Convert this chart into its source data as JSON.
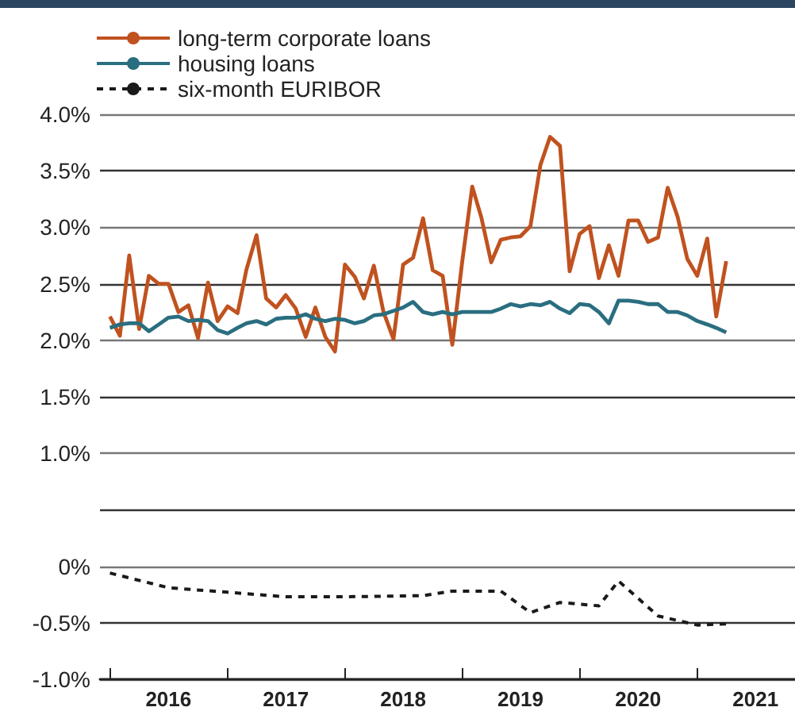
{
  "chart_data": {
    "type": "line",
    "x": [
      "2016-01",
      "2016-02",
      "2016-03",
      "2016-04",
      "2016-05",
      "2016-06",
      "2016-07",
      "2016-08",
      "2016-09",
      "2016-10",
      "2016-11",
      "2016-12",
      "2017-01",
      "2017-02",
      "2017-03",
      "2017-04",
      "2017-05",
      "2017-06",
      "2017-07",
      "2017-08",
      "2017-09",
      "2017-10",
      "2017-11",
      "2017-12",
      "2018-01",
      "2018-02",
      "2018-03",
      "2018-04",
      "2018-05",
      "2018-06",
      "2018-07",
      "2018-08",
      "2018-09",
      "2018-10",
      "2018-11",
      "2018-12",
      "2019-01",
      "2019-02",
      "2019-03",
      "2019-04",
      "2019-05",
      "2019-06",
      "2019-07",
      "2019-08",
      "2019-09",
      "2019-10",
      "2019-11",
      "2019-12",
      "2020-01",
      "2020-02",
      "2020-03",
      "2020-04",
      "2020-05",
      "2020-06",
      "2020-07",
      "2020-08",
      "2020-09",
      "2020-10",
      "2020-11",
      "2020-12",
      "2021-01",
      "2021-02",
      "2021-03",
      "2021-04"
    ],
    "series": [
      {
        "name": "long-term corporate loans",
        "color": "#c0521f",
        "line_style": "solid",
        "values": [
          2.21,
          2.04,
          2.75,
          2.1,
          2.57,
          2.5,
          2.5,
          2.25,
          2.31,
          2.02,
          2.51,
          2.17,
          2.3,
          2.24,
          2.63,
          2.93,
          2.37,
          2.29,
          2.4,
          2.28,
          2.03,
          2.29,
          2.03,
          1.9,
          2.67,
          2.56,
          2.37,
          2.66,
          2.25,
          2.01,
          2.67,
          2.73,
          3.08,
          2.62,
          2.57,
          1.96,
          2.7,
          3.36,
          3.09,
          2.69,
          2.89,
          2.91,
          2.92,
          3.01,
          3.55,
          3.8,
          3.72,
          2.61,
          2.94,
          3.01,
          2.55,
          2.84,
          2.57,
          3.06,
          3.06,
          2.87,
          2.91,
          3.35,
          3.09,
          2.72,
          2.57,
          2.9,
          2.21,
          2.7
        ]
      },
      {
        "name": "housing loans",
        "color": "#2a6e80",
        "line_style": "solid",
        "values": [
          2.11,
          2.14,
          2.15,
          2.15,
          2.08,
          2.14,
          2.2,
          2.21,
          2.17,
          2.18,
          2.17,
          2.09,
          2.06,
          2.11,
          2.15,
          2.17,
          2.14,
          2.19,
          2.2,
          2.2,
          2.23,
          2.19,
          2.17,
          2.19,
          2.18,
          2.15,
          2.17,
          2.22,
          2.23,
          2.26,
          2.29,
          2.34,
          2.25,
          2.23,
          2.25,
          2.23,
          2.25,
          2.25,
          2.25,
          2.25,
          2.28,
          2.32,
          2.3,
          2.32,
          2.31,
          2.34,
          2.28,
          2.24,
          2.32,
          2.31,
          2.25,
          2.15,
          2.35,
          2.35,
          2.34,
          2.32,
          2.32,
          2.25,
          2.25,
          2.22,
          2.17,
          2.14,
          2.11,
          2.07
        ]
      },
      {
        "name": "six-month EURIBOR",
        "color": "#1a1a1a",
        "line_style": "dashed",
        "x": [
          "2016-01",
          "2016-07",
          "2017-01",
          "2017-07",
          "2018-01",
          "2018-09",
          "2018-12",
          "2019-05",
          "2019-08",
          "2019-11",
          "2020-03",
          "2020-05",
          "2020-09",
          "2021-01",
          "2021-04"
        ],
        "values": [
          -0.06,
          -0.19,
          -0.23,
          -0.27,
          -0.27,
          -0.26,
          -0.22,
          -0.22,
          -0.41,
          -0.32,
          -0.35,
          -0.13,
          -0.44,
          -0.52,
          -0.51
        ]
      }
    ],
    "xlim": [
      "2015-12",
      "2021-11"
    ],
    "xticks": [
      {
        "value": "2016-01",
        "label": null
      },
      {
        "value": "2017-01",
        "label": null
      },
      {
        "value": "2018-01",
        "label": null
      },
      {
        "value": "2019-01",
        "label": null
      },
      {
        "value": "2020-01",
        "label": null
      },
      {
        "value": "2021-01",
        "label": null
      },
      {
        "value": "2016-07",
        "label": "2016"
      },
      {
        "value": "2017-07",
        "label": "2017"
      },
      {
        "value": "2018-07",
        "label": "2018"
      },
      {
        "value": "2019-07",
        "label": "2019"
      },
      {
        "value": "2020-07",
        "label": "2020"
      },
      {
        "value": "2021-07",
        "label": "2021"
      }
    ],
    "ylim": [
      -1.0,
      4.0
    ],
    "yticks": [
      {
        "value": -1.0,
        "label": "-1.0%"
      },
      {
        "value": -0.5,
        "label": "-0.5%"
      },
      {
        "value": 0,
        "label": "0%"
      },
      {
        "value": 0.5,
        "label": null
      },
      {
        "value": 1.0,
        "label": "1.0%"
      },
      {
        "value": 1.5,
        "label": "1.5%"
      },
      {
        "value": 2.0,
        "label": "2.0%"
      },
      {
        "value": 2.5,
        "label": "2.5%"
      },
      {
        "value": 3.0,
        "label": "3.0%"
      },
      {
        "value": 3.5,
        "label": "3.5%"
      },
      {
        "value": 4.0,
        "label": "4.0%"
      }
    ],
    "grid": "y",
    "legend": "top left",
    "marker": "none"
  }
}
